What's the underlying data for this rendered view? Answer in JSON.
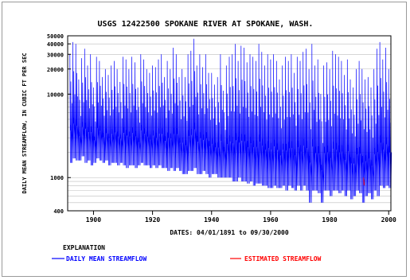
{
  "chart_data": {
    "type": "line",
    "title": "USGS 12422500 SPOKANE RIVER AT SPOKANE, WASH.",
    "ylabel": "DAILY MEAN STREAMFLOW, IN CUBIC FT PER SEC",
    "xlabel": "DATES: 04/01/1891 to 09/30/2000",
    "x_range": [
      1891.25,
      2000.75
    ],
    "ylim": [
      400,
      50000
    ],
    "y_scale": "log",
    "x_ticks": [
      1900,
      1920,
      1940,
      1960,
      1980,
      2000
    ],
    "y_ticks": [
      400,
      1000,
      10000,
      20000,
      30000,
      40000,
      50000
    ],
    "y_tick_labels": [
      "400",
      "1000",
      "10000",
      "20000",
      "30000",
      "40000",
      "50000"
    ],
    "grid": true,
    "legend": {
      "heading": "EXPLANATION",
      "placement": "bottom",
      "entries": [
        {
          "label": "DAILY MEAN STREAMFLOW",
          "color": "#0000ff"
        },
        {
          "label": "ESTIMATED STREAMFLOW",
          "color": "#ff0000"
        }
      ]
    },
    "series": [
      {
        "name": "DAILY MEAN STREAMFLOW",
        "color": "#0000ff",
        "x": [
          1892,
          1893,
          1894,
          1895,
          1896,
          1897,
          1898,
          1899,
          1900,
          1901,
          1902,
          1903,
          1904,
          1905,
          1906,
          1907,
          1908,
          1909,
          1910,
          1911,
          1912,
          1913,
          1914,
          1915,
          1916,
          1917,
          1918,
          1919,
          1920,
          1921,
          1922,
          1923,
          1924,
          1925,
          1926,
          1927,
          1928,
          1929,
          1930,
          1931,
          1932,
          1933,
          1934,
          1935,
          1936,
          1937,
          1938,
          1939,
          1940,
          1941,
          1942,
          1943,
          1944,
          1945,
          1946,
          1947,
          1948,
          1949,
          1950,
          1951,
          1952,
          1953,
          1954,
          1955,
          1956,
          1957,
          1958,
          1959,
          1960,
          1961,
          1962,
          1963,
          1964,
          1965,
          1966,
          1967,
          1968,
          1969,
          1970,
          1971,
          1972,
          1973,
          1974,
          1975,
          1976,
          1977,
          1978,
          1979,
          1980,
          1981,
          1982,
          1983,
          1984,
          1985,
          1986,
          1987,
          1988,
          1989,
          1990,
          1991,
          1992,
          1993,
          1994,
          1995,
          1996,
          1997,
          1998,
          1999,
          2000
        ],
        "high": [
          30000,
          42000,
          40000,
          15000,
          27000,
          35000,
          22000,
          30000,
          12000,
          28000,
          25000,
          16000,
          20000,
          17000,
          22000,
          25000,
          20000,
          14000,
          28000,
          26000,
          20000,
          28000,
          24000,
          12000,
          30000,
          26000,
          20000,
          18000,
          22000,
          21000,
          26000,
          30000,
          16000,
          25000,
          20000,
          36000,
          30000,
          16000,
          20000,
          16000,
          30000,
          33000,
          46000,
          22000,
          30000,
          21000,
          30000,
          18000,
          18000,
          13000,
          16000,
          30000,
          11000,
          22000,
          28000,
          30000,
          40000,
          25000,
          38000,
          36000,
          24000,
          30000,
          28000,
          25000,
          40000,
          32000,
          22000,
          30000,
          26000,
          30000,
          25000,
          15000,
          22000,
          28000,
          25000,
          30000,
          18000,
          28000,
          25000,
          32000,
          35000,
          20000,
          40000,
          22000,
          26000,
          10000,
          22000,
          24000,
          20000,
          33000,
          30000,
          28000,
          25000,
          17000,
          26000,
          15000,
          12000,
          20000,
          25000,
          20000,
          15000,
          16000,
          12000,
          20000,
          35000,
          42000,
          26000,
          36000,
          20000
        ],
        "low": [
          1500,
          1700,
          1600,
          1600,
          1800,
          1500,
          1600,
          1400,
          1500,
          1700,
          1600,
          1500,
          1600,
          1400,
          1500,
          1500,
          1400,
          1500,
          1400,
          1300,
          1400,
          1400,
          1300,
          1400,
          1500,
          1400,
          1400,
          1300,
          1400,
          1300,
          1400,
          1300,
          1300,
          1200,
          1300,
          1200,
          1300,
          1200,
          1100,
          1100,
          1200,
          1200,
          1300,
          1100,
          1100,
          1200,
          1100,
          1000,
          1100,
          1100,
          1000,
          1000,
          1000,
          1000,
          1000,
          900,
          900,
          1000,
          900,
          900,
          850,
          900,
          800,
          850,
          850,
          800,
          800,
          750,
          750,
          800,
          750,
          750,
          800,
          700,
          800,
          750,
          700,
          800,
          700,
          800,
          700,
          500,
          700,
          700,
          650,
          500,
          700,
          700,
          600,
          700,
          700,
          650,
          700,
          600,
          700,
          550,
          600,
          700,
          650,
          500,
          600,
          650,
          550,
          700,
          600,
          800,
          750,
          800,
          750
        ]
      },
      {
        "name": "ESTIMATED STREAMFLOW",
        "color": "#ff0000",
        "x": [
          1991.5,
          1991.6
        ],
        "high": [
          1000,
          950
        ],
        "low": [
          800,
          820
        ]
      }
    ]
  }
}
